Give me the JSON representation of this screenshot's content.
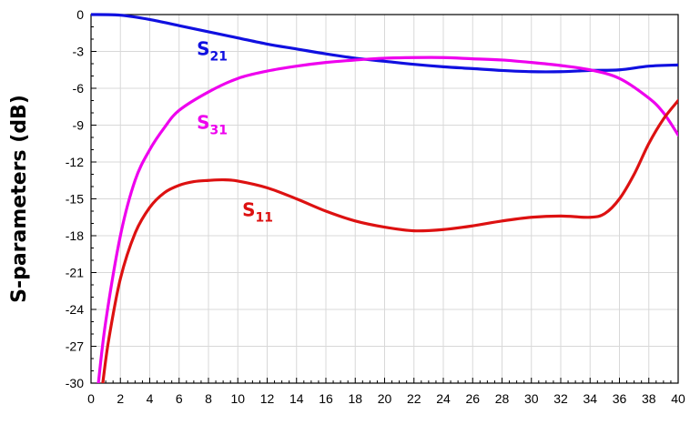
{
  "chart_data": {
    "type": "line",
    "title": "",
    "xlabel": "",
    "ylabel": "S-parameters (dB)",
    "xlim": [
      0,
      40
    ],
    "ylim": [
      -30,
      0
    ],
    "xticks": [
      0,
      2,
      4,
      6,
      8,
      10,
      12,
      14,
      16,
      18,
      20,
      22,
      24,
      26,
      28,
      30,
      32,
      34,
      36,
      38,
      40
    ],
    "yticks": [
      0,
      -3,
      -6,
      -9,
      -12,
      -15,
      -18,
      -21,
      -24,
      -27,
      -30
    ],
    "grid": true,
    "series": [
      {
        "name": "S21",
        "label_main": "S",
        "label_sub": "21",
        "color": "#1010e0",
        "label_at": [
          7.2,
          -3.3
        ],
        "points": [
          [
            0,
            0
          ],
          [
            2,
            -0.05
          ],
          [
            4,
            -0.4
          ],
          [
            6,
            -0.9
          ],
          [
            8,
            -1.4
          ],
          [
            10,
            -1.9
          ],
          [
            12,
            -2.4
          ],
          [
            14,
            -2.8
          ],
          [
            16,
            -3.2
          ],
          [
            18,
            -3.55
          ],
          [
            20,
            -3.8
          ],
          [
            22,
            -4.05
          ],
          [
            24,
            -4.25
          ],
          [
            26,
            -4.4
          ],
          [
            28,
            -4.55
          ],
          [
            30,
            -4.65
          ],
          [
            32,
            -4.65
          ],
          [
            34,
            -4.55
          ],
          [
            36,
            -4.5
          ],
          [
            38,
            -4.2
          ],
          [
            40,
            -4.1
          ]
        ]
      },
      {
        "name": "S31",
        "label_main": "S",
        "label_sub": "31",
        "color": "#ee00ee",
        "label_at": [
          7.2,
          -9.3
        ],
        "points": [
          [
            0.5,
            -30
          ],
          [
            1,
            -25
          ],
          [
            2,
            -18
          ],
          [
            3,
            -13.5
          ],
          [
            4,
            -11
          ],
          [
            5,
            -9.2
          ],
          [
            6,
            -7.8
          ],
          [
            8,
            -6.3
          ],
          [
            10,
            -5.2
          ],
          [
            12,
            -4.6
          ],
          [
            14,
            -4.2
          ],
          [
            16,
            -3.9
          ],
          [
            18,
            -3.7
          ],
          [
            20,
            -3.55
          ],
          [
            22,
            -3.5
          ],
          [
            24,
            -3.5
          ],
          [
            26,
            -3.6
          ],
          [
            28,
            -3.7
          ],
          [
            30,
            -3.9
          ],
          [
            32,
            -4.15
          ],
          [
            34,
            -4.5
          ],
          [
            36,
            -5.2
          ],
          [
            38,
            -6.8
          ],
          [
            39,
            -8.0
          ],
          [
            40,
            -9.8
          ]
        ]
      },
      {
        "name": "S11",
        "label_main": "S",
        "label_sub": "11",
        "color": "#dd1111",
        "label_at": [
          10.3,
          -16.4
        ],
        "points": [
          [
            0.8,
            -30
          ],
          [
            1.2,
            -26.5
          ],
          [
            2,
            -21.5
          ],
          [
            3,
            -17.8
          ],
          [
            4,
            -15.7
          ],
          [
            5,
            -14.5
          ],
          [
            6,
            -13.9
          ],
          [
            7,
            -13.6
          ],
          [
            8,
            -13.5
          ],
          [
            9,
            -13.45
          ],
          [
            10,
            -13.55
          ],
          [
            12,
            -14.1
          ],
          [
            14,
            -15.0
          ],
          [
            16,
            -16.0
          ],
          [
            18,
            -16.8
          ],
          [
            20,
            -17.3
          ],
          [
            22,
            -17.6
          ],
          [
            24,
            -17.5
          ],
          [
            26,
            -17.2
          ],
          [
            28,
            -16.8
          ],
          [
            30,
            -16.5
          ],
          [
            32,
            -16.4
          ],
          [
            34,
            -16.5
          ],
          [
            35,
            -16.2
          ],
          [
            36,
            -15.0
          ],
          [
            37,
            -13.0
          ],
          [
            38,
            -10.5
          ],
          [
            39,
            -8.5
          ],
          [
            40,
            -7.0
          ]
        ]
      }
    ]
  }
}
